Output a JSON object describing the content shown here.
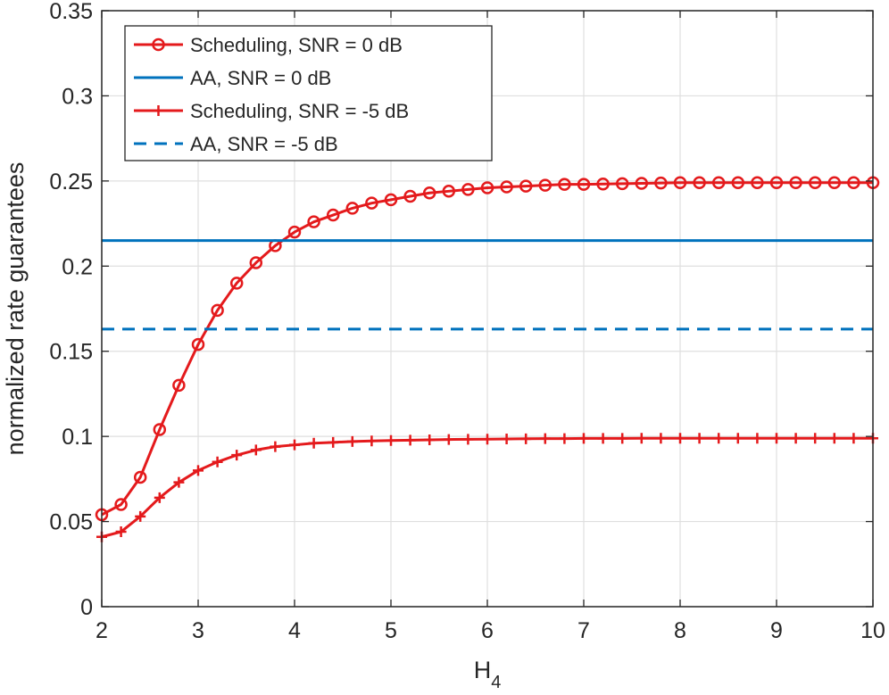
{
  "chart_data": {
    "type": "line",
    "title": "",
    "xlabel": "H",
    "xlabel_sub": "4",
    "ylabel": "normalized rate guarantees",
    "xlim": [
      2,
      10
    ],
    "ylim": [
      0,
      0.35
    ],
    "xticks": [
      2,
      3,
      4,
      5,
      6,
      7,
      8,
      9,
      10
    ],
    "yticks": [
      0,
      0.05,
      0.1,
      0.15,
      0.2,
      0.25,
      0.3,
      0.35
    ],
    "ytick_labels": [
      "0",
      "0.05",
      "0.1",
      "0.15",
      "0.2",
      "0.25",
      "0.3",
      "0.35"
    ],
    "grid": true,
    "legend_position": "top-left",
    "x": [
      2.0,
      2.2,
      2.4,
      2.6,
      2.8,
      3.0,
      3.2,
      3.4,
      3.6,
      3.8,
      4.0,
      4.2,
      4.4,
      4.6,
      4.8,
      5.0,
      5.2,
      5.4,
      5.6,
      5.8,
      6.0,
      6.2,
      6.4,
      6.6,
      6.8,
      7.0,
      7.2,
      7.4,
      7.6,
      7.8,
      8.0,
      8.2,
      8.4,
      8.6,
      8.8,
      9.0,
      9.2,
      9.4,
      9.6,
      9.8,
      10.0
    ],
    "series": [
      {
        "name": "Scheduling, SNR = 0 dB",
        "color": "#e41a1c",
        "style": "solid",
        "marker": "circle",
        "values": [
          0.054,
          0.06,
          0.076,
          0.104,
          0.13,
          0.154,
          0.174,
          0.19,
          0.202,
          0.212,
          0.22,
          0.226,
          0.23,
          0.234,
          0.237,
          0.239,
          0.241,
          0.243,
          0.244,
          0.245,
          0.246,
          0.2465,
          0.247,
          0.2475,
          0.248,
          0.248,
          0.2482,
          0.2484,
          0.2486,
          0.2488,
          0.249,
          0.249,
          0.249,
          0.249,
          0.249,
          0.249,
          0.249,
          0.249,
          0.249,
          0.249,
          0.249
        ]
      },
      {
        "name": "AA, SNR = 0 dB",
        "color": "#0072bd",
        "style": "solid",
        "marker": "none",
        "constant": 0.215
      },
      {
        "name": "Scheduling, SNR = -5 dB",
        "color": "#e41a1c",
        "style": "solid",
        "marker": "plus",
        "values": [
          0.041,
          0.044,
          0.053,
          0.064,
          0.073,
          0.08,
          0.085,
          0.089,
          0.092,
          0.094,
          0.095,
          0.096,
          0.0965,
          0.097,
          0.0973,
          0.0976,
          0.0978,
          0.098,
          0.0982,
          0.0983,
          0.0984,
          0.0985,
          0.0986,
          0.0987,
          0.0987,
          0.0988,
          0.0988,
          0.0988,
          0.0989,
          0.0989,
          0.0989,
          0.0989,
          0.0989,
          0.0989,
          0.0989,
          0.0989,
          0.0989,
          0.0989,
          0.0989,
          0.0989,
          0.0989
        ]
      },
      {
        "name": "AA, SNR = -5 dB",
        "color": "#0072bd",
        "style": "dashed",
        "marker": "none",
        "constant": 0.163
      }
    ]
  }
}
